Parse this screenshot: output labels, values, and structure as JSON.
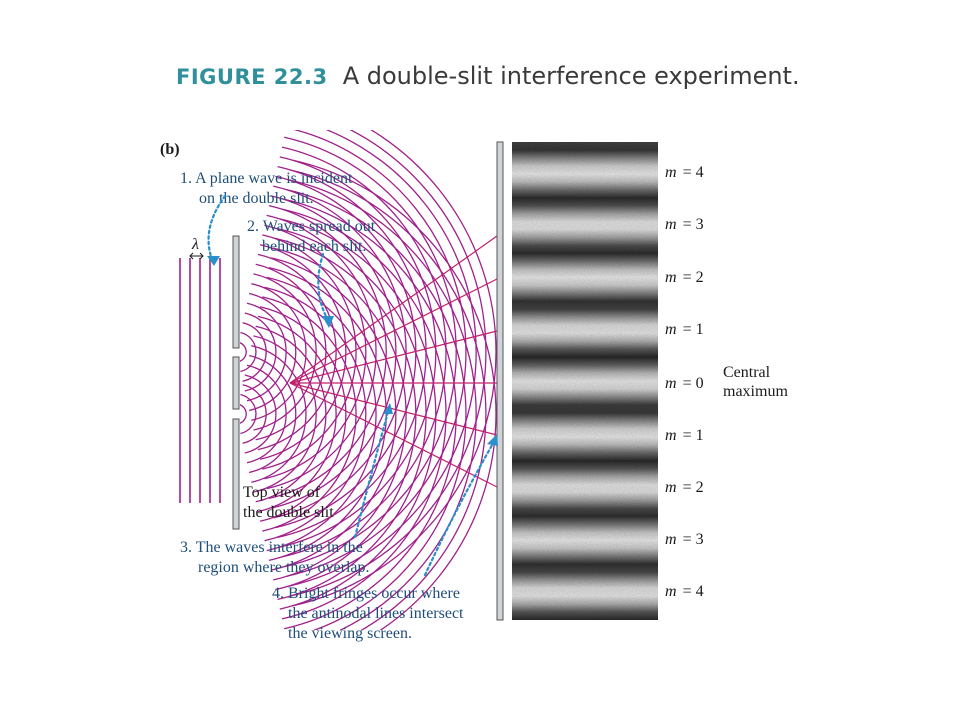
{
  "figure": {
    "number": "FIGURE 22.3",
    "caption": "A double-slit interference experiment."
  },
  "panel_label": "(b)",
  "wavelength_symbol": "λ",
  "annotations": [
    {
      "id": "1",
      "lines": [
        "1. A plane wave is incident",
        "on the double slit."
      ]
    },
    {
      "id": "2",
      "lines": [
        "2. Waves spread out",
        "behind each slit."
      ]
    },
    {
      "id": "3",
      "lines": [
        "3. The waves interfere in the",
        "region where they overlap."
      ]
    },
    {
      "id": "4",
      "lines": [
        "4. Bright fringes occur where",
        "the antinodal lines intersect",
        "the viewing screen."
      ]
    }
  ],
  "slit_label": [
    "Top view of",
    "the double slit"
  ],
  "fringe_labels": [
    {
      "m": "m",
      "eq": "= 4"
    },
    {
      "m": "m",
      "eq": "= 3"
    },
    {
      "m": "m",
      "eq": "= 2"
    },
    {
      "m": "m",
      "eq": "= 1"
    },
    {
      "m": "m",
      "eq": "= 0"
    },
    {
      "m": "m",
      "eq": "= 1"
    },
    {
      "m": "m",
      "eq": "= 2"
    },
    {
      "m": "m",
      "eq": "= 3"
    },
    {
      "m": "m",
      "eq": "= 4"
    }
  ],
  "central_label": [
    "Central",
    "maximum"
  ],
  "colors": {
    "wave": "#a0208c",
    "antinodal_line": "#c0206a",
    "annotation_arrow": "#2b8fc9",
    "annotation_text": "#1f4e7a",
    "title_accent": "#2f8f9a"
  }
}
